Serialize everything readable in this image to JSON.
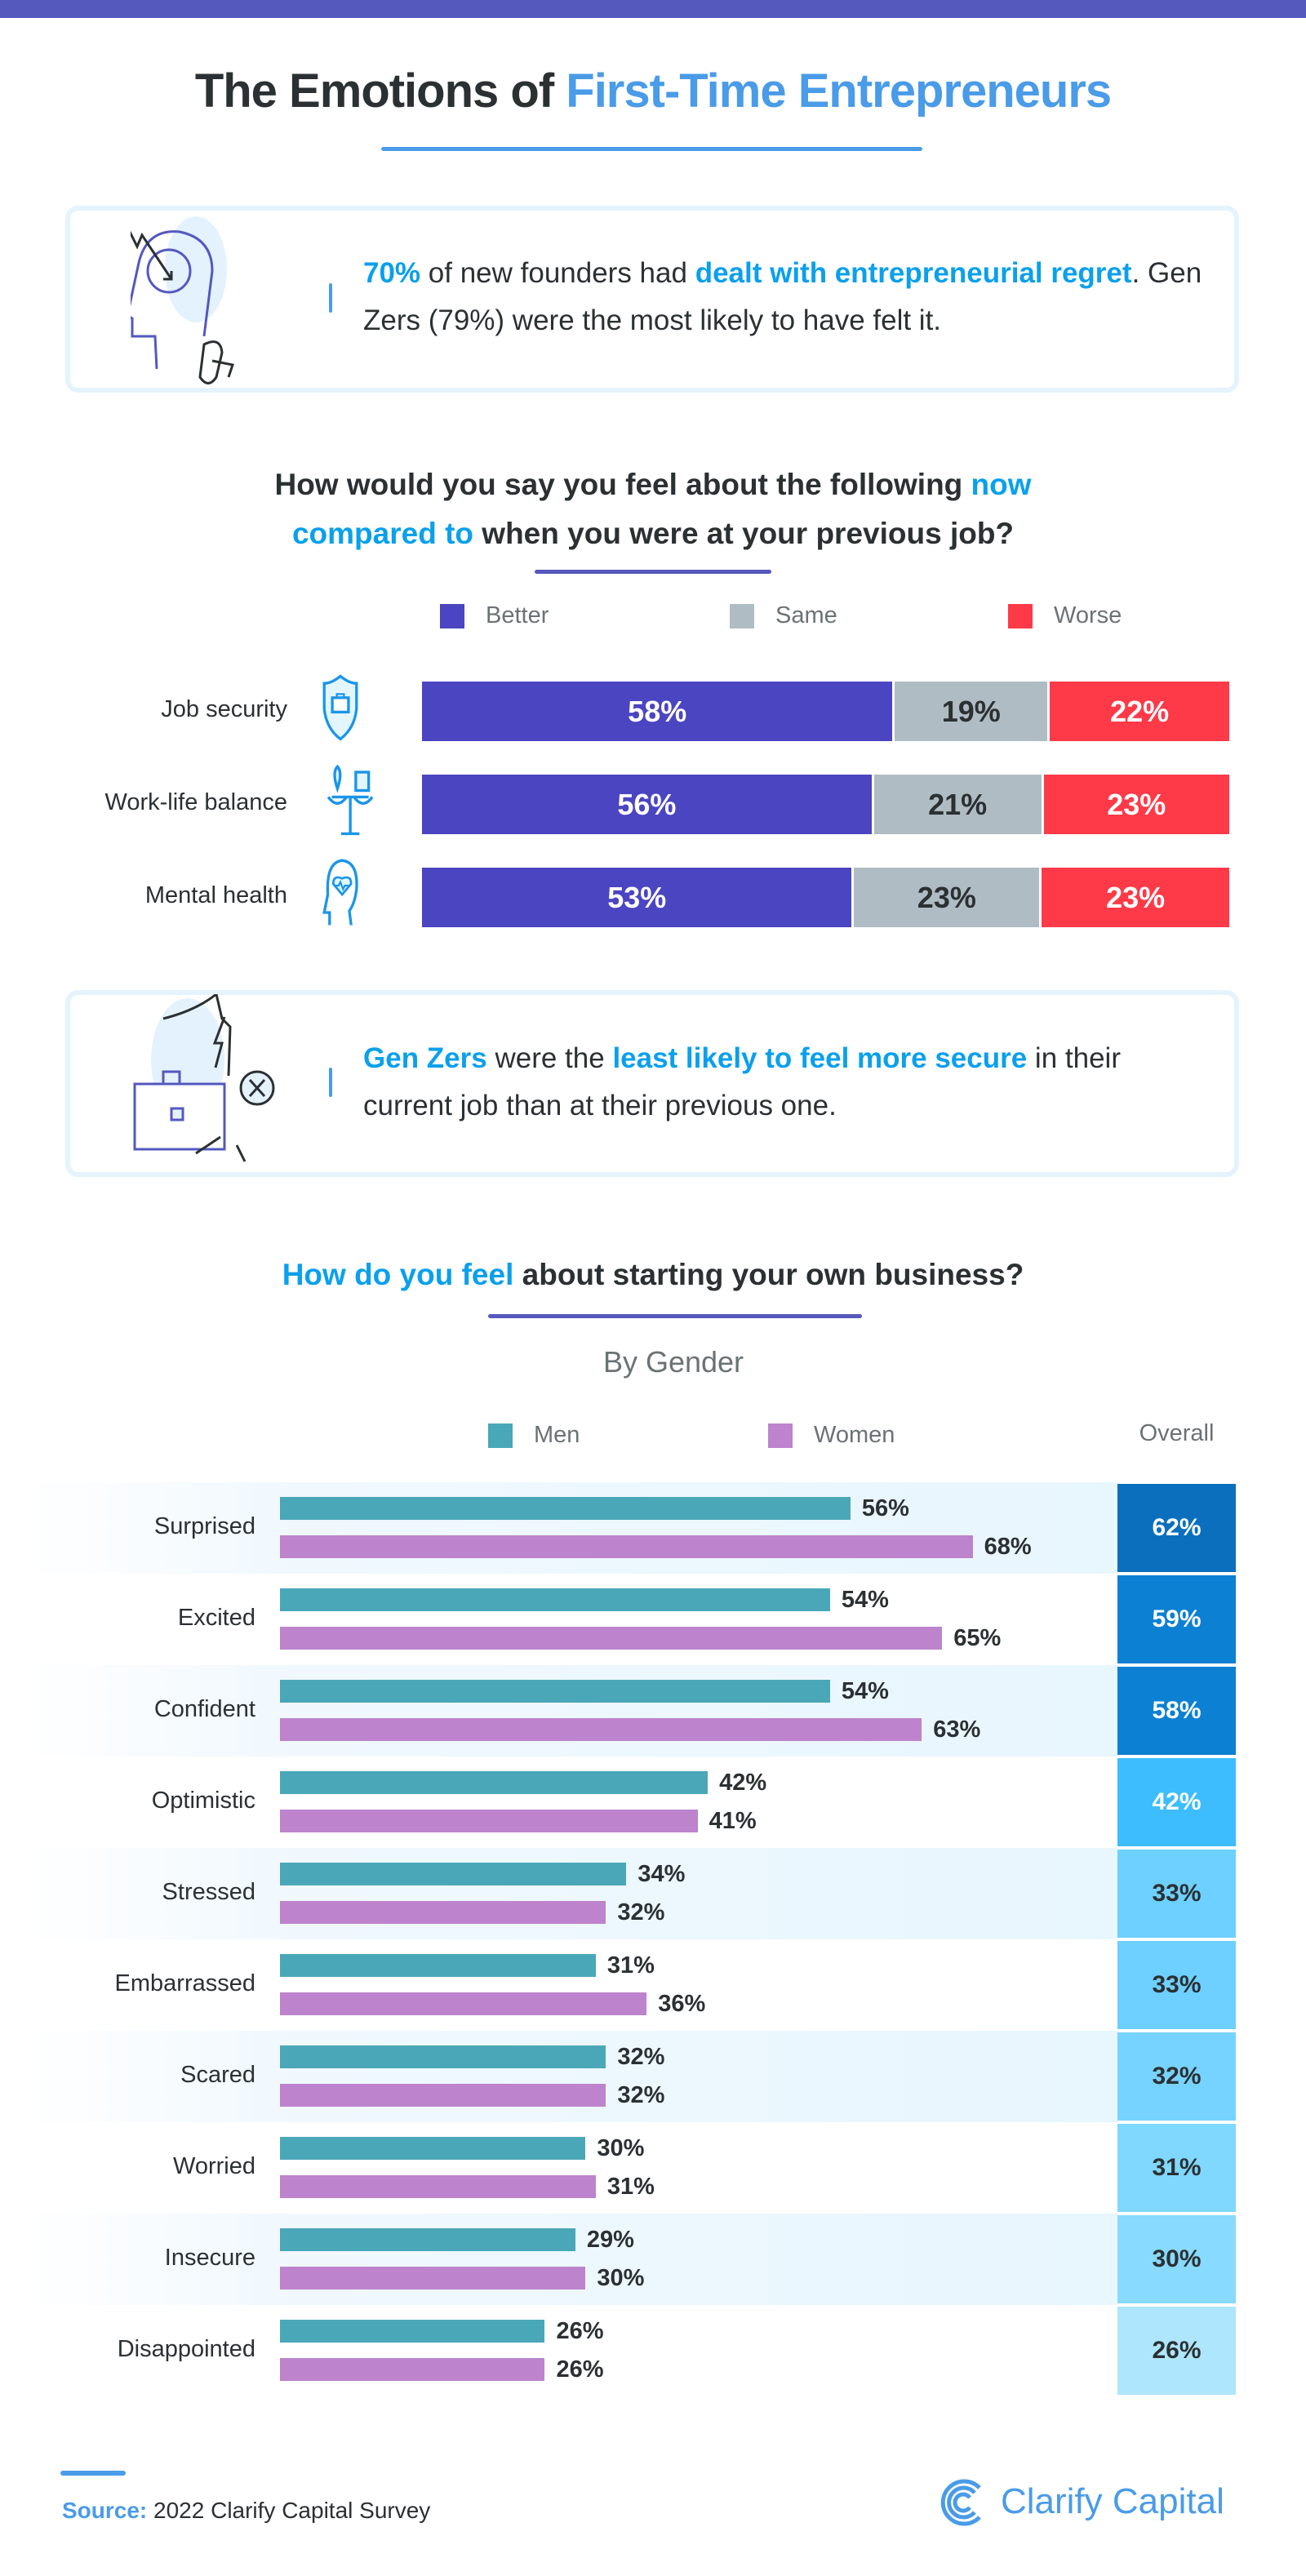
{
  "header": {
    "title_part1": "The Emotions of ",
    "title_part2": "First-Time Entrepreneurs"
  },
  "callout1": {
    "icon": "head-regret-icon",
    "stat": "70%",
    "text1": " of new founders had ",
    "highlight": "dealt with entrepreneurial regret",
    "text2": ". Gen Zers (79%) were the most likely to have felt it."
  },
  "chart_data": [
    {
      "type": "bar",
      "stacked": true,
      "orientation": "horizontal",
      "title_parts": [
        "How would you say you feel about the following ",
        "now compared to",
        " when you were at your previous job?"
      ],
      "categories": [
        "Job security",
        "Work-life balance",
        "Mental health"
      ],
      "category_icons": [
        "shield-briefcase-icon",
        "scale-heart-briefcase-icon",
        "head-heart-icon"
      ],
      "series": [
        {
          "name": "Better",
          "color": "#4b45c1",
          "values": [
            58,
            56,
            53
          ]
        },
        {
          "name": "Same",
          "color": "#b0bcc3",
          "values": [
            19,
            21,
            23
          ]
        },
        {
          "name": "Worse",
          "color": "#fe3a48",
          "values": [
            22,
            23,
            23
          ]
        }
      ],
      "unit": "%",
      "legend": "top"
    },
    {
      "type": "bar",
      "orientation": "horizontal",
      "title_parts": [
        "How do you feel",
        " about starting your own business?"
      ],
      "subtitle": "By Gender",
      "categories": [
        "Surprised",
        "Excited",
        "Confident",
        "Optimistic",
        "Stressed",
        "Embarrassed",
        "Scared",
        "Worried",
        "Insecure",
        "Disappointed"
      ],
      "series": [
        {
          "name": "Men",
          "color": "#4aa7b8",
          "values": [
            56,
            54,
            54,
            42,
            34,
            31,
            32,
            30,
            29,
            26
          ]
        },
        {
          "name": "Women",
          "color": "#bd83cc",
          "values": [
            68,
            65,
            63,
            41,
            32,
            36,
            32,
            31,
            30,
            26
          ]
        }
      ],
      "overall": {
        "label": "Overall",
        "values": [
          62,
          59,
          58,
          42,
          33,
          33,
          32,
          31,
          30,
          26
        ],
        "colors": [
          "#0b6fbd",
          "#0c80d2",
          "#0c80d2",
          "#3dbdfe",
          "#6dd0ff",
          "#6dd0ff",
          "#76d3ff",
          "#80d7ff",
          "#88dafe",
          "#aee6fd"
        ]
      },
      "unit": "%",
      "legend": "top"
    }
  ],
  "callout2": {
    "icon": "broken-security-briefcase-icon",
    "highlight1": "Gen Zers",
    "text1": " were the ",
    "highlight2": "least likely to feel more secure",
    "text2": " in their current job than at their previous one."
  },
  "footer": {
    "source_label": "Source:",
    "source_text": " 2022 Clarify Capital Survey",
    "brand": "Clarify Capital"
  },
  "colors": {
    "accent_blue": "#4a9be8",
    "highlight": "#0aa0ec",
    "purple": "#5558bd",
    "text": "#2b3033"
  }
}
